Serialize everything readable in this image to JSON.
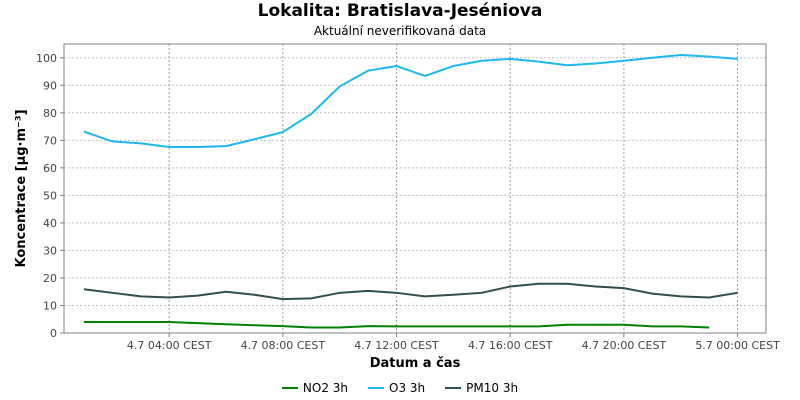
{
  "chart_data": {
    "type": "line",
    "title": "Lokalita: Bratislava-Jeséniova",
    "subtitle": "Aktuální neverifikovaná data",
    "xlabel": "Datum a čas",
    "ylabel": "Koncentrace [µg·m⁻³]",
    "ylim": [
      0,
      105
    ],
    "yticks": [
      0,
      10,
      20,
      30,
      40,
      50,
      60,
      70,
      80,
      90,
      100
    ],
    "x_hours": [
      1,
      2,
      3,
      4,
      5,
      6,
      7,
      8,
      9,
      10,
      11,
      12,
      13,
      14,
      15,
      16,
      17,
      18,
      19,
      20,
      21,
      22,
      23,
      24
    ],
    "xlim_hours": [
      0.3,
      25
    ],
    "xticks": [
      {
        "hour": 4,
        "label": "4.7 04:00 CEST"
      },
      {
        "hour": 8,
        "label": "4.7 08:00 CEST"
      },
      {
        "hour": 12,
        "label": "4.7 12:00 CEST"
      },
      {
        "hour": 16,
        "label": "4.7 16:00 CEST"
      },
      {
        "hour": 20,
        "label": "4.7 20:00 CEST"
      },
      {
        "hour": 24,
        "label": "5.7 00:00 CEST"
      }
    ],
    "grid": true,
    "legend_position": "bottom",
    "series": [
      {
        "name": "NO2 3h",
        "color": "#008000",
        "values": [
          4,
          4,
          4,
          4,
          3.6,
          3.2,
          2.8,
          2.5,
          2,
          2,
          2.5,
          2.4,
          2.4,
          2.4,
          2.4,
          2.4,
          2.4,
          3,
          3,
          3,
          2.4,
          2.4,
          2
        ]
      },
      {
        "name": "O3 3h",
        "color": "#1eb7f0",
        "values": [
          73.2,
          69.6,
          68.9,
          67.6,
          67.6,
          67.9,
          70.4,
          73,
          79.6,
          89.6,
          95.3,
          97,
          93.4,
          97,
          98.9,
          99.6,
          98.6,
          97.3,
          97.9,
          98.9,
          100,
          101,
          100.4,
          99.6
        ]
      },
      {
        "name": "PM10 3h",
        "color": "#2f4f4f",
        "values": [
          15.9,
          14.6,
          13.3,
          12.9,
          13.6,
          15,
          13.9,
          12.3,
          12.6,
          14.6,
          15.3,
          14.6,
          13.3,
          13.9,
          14.6,
          16.9,
          17.9,
          17.9,
          16.9,
          16.3,
          14.3,
          13.3,
          12.9,
          14.6
        ]
      }
    ]
  }
}
